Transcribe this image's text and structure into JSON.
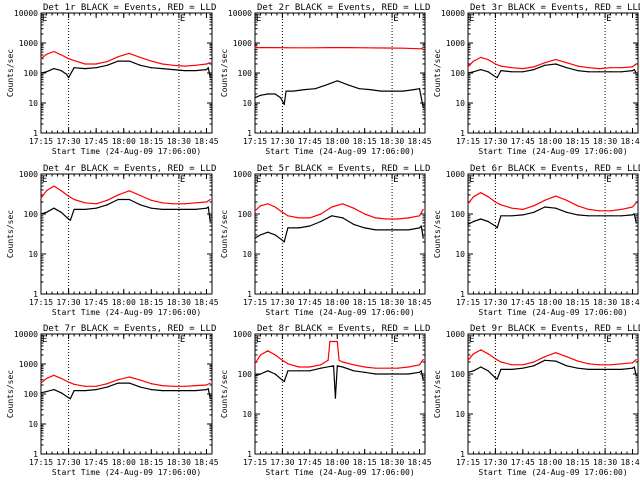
{
  "figure": {
    "xlabel": "Start Time (24-Aug-09 17:06:00)",
    "ylabel": "Counts/sec",
    "x_tick_labels": [
      "17:15",
      "17:30",
      "17:45",
      "18:00",
      "18:15",
      "18:30",
      "18:45"
    ],
    "y_tick_labels": [
      "1",
      "10",
      "100",
      "1000",
      "10000"
    ],
    "marker_label": "E",
    "series_colors": {
      "events": "#000000",
      "lld": "#ff0000"
    }
  },
  "chart_data": [
    {
      "type": "line",
      "title": "Det 1r BLACK = Events, RED = LLD",
      "xlabel": "Start Time (24-Aug-09 17:06:00)",
      "ylabel": "Counts/sec",
      "xlim_min": [
        9,
        102
      ],
      "ylim": [
        1,
        10000
      ],
      "yscale": "log",
      "dotted_lines_min": [
        24,
        84
      ],
      "E_marker_min": 84,
      "series": [
        {
          "name": "Events",
          "color": "#000000",
          "x": [
            9,
            12,
            16,
            20,
            23,
            24,
            27,
            33,
            39,
            45,
            51,
            57,
            63,
            69,
            75,
            81,
            87,
            93,
            99,
            100,
            101
          ],
          "y": [
            100,
            110,
            140,
            120,
            90,
            70,
            150,
            140,
            150,
            180,
            250,
            250,
            180,
            150,
            140,
            130,
            120,
            120,
            130,
            150,
            70
          ]
        },
        {
          "name": "LLD",
          "color": "#ff0000",
          "x": [
            9,
            12,
            16,
            20,
            24,
            27,
            33,
            39,
            45,
            51,
            57,
            63,
            69,
            75,
            81,
            87,
            93,
            99,
            101
          ],
          "y": [
            300,
            420,
            520,
            400,
            300,
            260,
            200,
            200,
            240,
            350,
            450,
            330,
            250,
            200,
            180,
            170,
            180,
            200,
            220
          ]
        }
      ]
    },
    {
      "type": "line",
      "title": "Det 2r BLACK = Events, RED = LLD",
      "xlabel": "Start Time (24-Aug-09 17:06:00)",
      "ylabel": "Counts/sec",
      "xlim_min": [
        9,
        102
      ],
      "ylim": [
        1,
        10000
      ],
      "yscale": "log",
      "dotted_lines_min": [
        24,
        84
      ],
      "E_marker_min": 84,
      "series": [
        {
          "name": "Events",
          "color": "#000000",
          "x": [
            9,
            12,
            16,
            20,
            23,
            25,
            26,
            30,
            36,
            42,
            48,
            54,
            60,
            66,
            72,
            78,
            84,
            90,
            96,
            99,
            100,
            101
          ],
          "y": [
            15,
            18,
            20,
            20,
            15,
            9,
            25,
            25,
            28,
            30,
            40,
            55,
            40,
            30,
            28,
            25,
            25,
            25,
            28,
            30,
            15,
            7
          ]
        },
        {
          "name": "LLD",
          "color": "#ff0000",
          "x": [
            9,
            20,
            30,
            40,
            50,
            60,
            70,
            80,
            90,
            100,
            101
          ],
          "y": [
            700,
            700,
            690,
            690,
            700,
            700,
            690,
            680,
            670,
            640,
            700
          ]
        }
      ]
    },
    {
      "type": "line",
      "title": "Det 3r BLACK = Events, RED = LLD",
      "xlabel": "Start Time (24-Aug-09 17:06:00)",
      "ylabel": "Counts/sec",
      "xlim_min": [
        9,
        102
      ],
      "ylim": [
        1,
        10000
      ],
      "yscale": "log",
      "dotted_lines_min": [
        24,
        84
      ],
      "E_marker_min": 84,
      "series": [
        {
          "name": "Events",
          "color": "#000000",
          "x": [
            9,
            12,
            16,
            20,
            24,
            25,
            27,
            33,
            39,
            45,
            51,
            57,
            63,
            69,
            75,
            81,
            87,
            93,
            99,
            100,
            101
          ],
          "y": [
            100,
            110,
            130,
            110,
            75,
            70,
            120,
            110,
            110,
            130,
            180,
            200,
            150,
            120,
            110,
            110,
            110,
            110,
            120,
            130,
            100
          ]
        },
        {
          "name": "LLD",
          "color": "#ff0000",
          "x": [
            9,
            12,
            16,
            20,
            24,
            27,
            33,
            39,
            45,
            51,
            57,
            63,
            69,
            75,
            81,
            87,
            93,
            99,
            101
          ],
          "y": [
            160,
            250,
            330,
            280,
            200,
            170,
            150,
            140,
            160,
            220,
            280,
            220,
            170,
            150,
            140,
            150,
            150,
            160,
            200
          ]
        }
      ]
    },
    {
      "type": "line",
      "title": "Det 4r BLACK = Events, RED = LLD",
      "xlabel": "Start Time (24-Aug-09 17:06:00)",
      "ylabel": "Counts/sec",
      "xlim_min": [
        9,
        102
      ],
      "ylim": [
        1,
        1000
      ],
      "yscale": "log",
      "dotted_lines_min": [
        24,
        84
      ],
      "E_marker_min": 84,
      "series": [
        {
          "name": "Events",
          "color": "#000000",
          "x": [
            9,
            12,
            16,
            20,
            24,
            25,
            27,
            33,
            39,
            45,
            51,
            57,
            63,
            69,
            75,
            81,
            87,
            93,
            99,
            100,
            101
          ],
          "y": [
            100,
            110,
            140,
            110,
            75,
            70,
            130,
            130,
            140,
            170,
            230,
            230,
            170,
            140,
            130,
            130,
            130,
            130,
            140,
            150,
            65
          ]
        },
        {
          "name": "LLD",
          "color": "#ff0000",
          "x": [
            9,
            12,
            16,
            20,
            24,
            27,
            33,
            39,
            45,
            51,
            57,
            63,
            69,
            75,
            81,
            87,
            93,
            99,
            101
          ],
          "y": [
            250,
            380,
            500,
            380,
            280,
            230,
            190,
            180,
            220,
            300,
            380,
            290,
            220,
            190,
            180,
            180,
            190,
            200,
            230
          ]
        }
      ]
    },
    {
      "type": "line",
      "title": "Det 5r BLACK = Events, RED = LLD",
      "xlabel": "Start Time (24-Aug-09 17:06:00)",
      "ylabel": "Counts/sec",
      "xlim_min": [
        9,
        102
      ],
      "ylim": [
        1,
        1000
      ],
      "yscale": "log",
      "dotted_lines_min": [
        24,
        84
      ],
      "E_marker_min": 84,
      "series": [
        {
          "name": "Events",
          "color": "#000000",
          "x": [
            9,
            12,
            16,
            20,
            24,
            25,
            27,
            33,
            39,
            45,
            51,
            57,
            63,
            69,
            75,
            81,
            87,
            93,
            99,
            100,
            101
          ],
          "y": [
            25,
            30,
            35,
            30,
            22,
            20,
            45,
            45,
            50,
            65,
            90,
            80,
            55,
            45,
            40,
            40,
            40,
            40,
            45,
            50,
            25
          ]
        },
        {
          "name": "LLD",
          "color": "#ff0000",
          "x": [
            9,
            12,
            16,
            20,
            24,
            27,
            33,
            39,
            45,
            51,
            57,
            63,
            69,
            75,
            81,
            87,
            93,
            99,
            101
          ],
          "y": [
            120,
            160,
            180,
            150,
            110,
            90,
            80,
            80,
            100,
            150,
            180,
            140,
            100,
            80,
            75,
            75,
            80,
            90,
            130
          ]
        }
      ]
    },
    {
      "type": "line",
      "title": "Det 6r BLACK = Events, RED = LLD",
      "xlabel": "Start Time (24-Aug-09 17:06:00)",
      "ylabel": "Counts/sec",
      "xlim_min": [
        9,
        102
      ],
      "ylim": [
        1,
        1000
      ],
      "yscale": "log",
      "dotted_lines_min": [
        24,
        84
      ],
      "E_marker_min": 84,
      "series": [
        {
          "name": "Events",
          "color": "#000000",
          "x": [
            9,
            12,
            16,
            20,
            24,
            25,
            27,
            33,
            39,
            45,
            51,
            57,
            63,
            69,
            75,
            81,
            87,
            93,
            99,
            100,
            101
          ],
          "y": [
            55,
            65,
            75,
            65,
            50,
            45,
            90,
            90,
            95,
            110,
            150,
            140,
            110,
            95,
            90,
            90,
            90,
            90,
            95,
            100,
            60
          ]
        },
        {
          "name": "LLD",
          "color": "#ff0000",
          "x": [
            9,
            12,
            16,
            20,
            24,
            27,
            33,
            39,
            45,
            51,
            57,
            63,
            69,
            75,
            81,
            87,
            93,
            99,
            101
          ],
          "y": [
            180,
            270,
            340,
            270,
            200,
            170,
            140,
            130,
            160,
            220,
            280,
            220,
            160,
            130,
            120,
            120,
            130,
            150,
            190
          ]
        }
      ]
    },
    {
      "type": "line",
      "title": "Det 7r BLACK = Events, RED = LLD",
      "xlabel": "Start Time (24-Aug-09 17:06:00)",
      "ylabel": "Counts/sec",
      "xlim_min": [
        9,
        102
      ],
      "ylim": [
        1,
        10000
      ],
      "yscale": "log",
      "dotted_lines_min": [
        24,
        84
      ],
      "E_marker_min": 84,
      "series": [
        {
          "name": "Events",
          "color": "#000000",
          "x": [
            9,
            12,
            16,
            20,
            24,
            25,
            27,
            33,
            39,
            45,
            51,
            57,
            63,
            69,
            75,
            81,
            87,
            93,
            99,
            100,
            101
          ],
          "y": [
            110,
            120,
            140,
            110,
            75,
            70,
            130,
            130,
            140,
            170,
            230,
            230,
            170,
            140,
            130,
            130,
            130,
            130,
            140,
            150,
            70
          ]
        },
        {
          "name": "LLD",
          "color": "#ff0000",
          "x": [
            9,
            12,
            16,
            20,
            24,
            27,
            33,
            39,
            45,
            51,
            57,
            63,
            69,
            75,
            81,
            87,
            93,
            99,
            101
          ],
          "y": [
            230,
            330,
            420,
            330,
            250,
            210,
            180,
            180,
            220,
            300,
            370,
            290,
            220,
            190,
            180,
            180,
            190,
            200,
            230
          ]
        }
      ]
    },
    {
      "type": "line",
      "title": "Det 8r BLACK = Events, RED = LLD",
      "xlabel": "Start Time (24-Aug-09 17:06:00)",
      "ylabel": "Counts/sec",
      "xlim_min": [
        9,
        102
      ],
      "ylim": [
        1,
        1000
      ],
      "yscale": "log",
      "dotted_lines_min": [
        24,
        84
      ],
      "E_marker_min": 84,
      "series": [
        {
          "name": "Events",
          "color": "#000000",
          "x": [
            9,
            12,
            16,
            20,
            24,
            25,
            27,
            33,
            39,
            45,
            52,
            53,
            54,
            57,
            63,
            69,
            75,
            81,
            87,
            93,
            99,
            100,
            101
          ],
          "y": [
            90,
            100,
            120,
            100,
            70,
            65,
            120,
            120,
            120,
            140,
            160,
            25,
            160,
            150,
            120,
            110,
            100,
            100,
            100,
            100,
            110,
            120,
            70
          ]
        },
        {
          "name": "LLD",
          "color": "#ff0000",
          "x": [
            9,
            12,
            16,
            20,
            24,
            27,
            33,
            39,
            45,
            49,
            50,
            54,
            55,
            57,
            63,
            69,
            75,
            81,
            87,
            93,
            99,
            101
          ],
          "y": [
            180,
            300,
            380,
            300,
            220,
            180,
            150,
            150,
            170,
            220,
            650,
            650,
            220,
            200,
            170,
            150,
            140,
            140,
            140,
            150,
            170,
            230
          ]
        }
      ]
    },
    {
      "type": "line",
      "title": "Det 9r BLACK = Events, RED = LLD",
      "xlabel": "Start Time (24-Aug-09 17:06:00)",
      "ylabel": "Counts/sec",
      "xlim_min": [
        9,
        102
      ],
      "ylim": [
        1,
        1000
      ],
      "yscale": "log",
      "dotted_lines_min": [
        24,
        84
      ],
      "E_marker_min": 84,
      "series": [
        {
          "name": "Events",
          "color": "#000000",
          "x": [
            9,
            12,
            16,
            20,
            24,
            25,
            27,
            33,
            39,
            45,
            51,
            57,
            63,
            69,
            75,
            81,
            87,
            93,
            99,
            100,
            101
          ],
          "y": [
            110,
            120,
            150,
            120,
            80,
            75,
            130,
            130,
            140,
            160,
            220,
            210,
            160,
            140,
            130,
            130,
            130,
            130,
            140,
            150,
            90
          ]
        },
        {
          "name": "LLD",
          "color": "#ff0000",
          "x": [
            9,
            12,
            16,
            20,
            24,
            27,
            33,
            39,
            45,
            51,
            57,
            63,
            69,
            75,
            81,
            87,
            93,
            99,
            101
          ],
          "y": [
            220,
            320,
            400,
            320,
            240,
            200,
            170,
            170,
            200,
            270,
            340,
            270,
            210,
            180,
            170,
            170,
            180,
            190,
            230
          ]
        }
      ]
    }
  ]
}
